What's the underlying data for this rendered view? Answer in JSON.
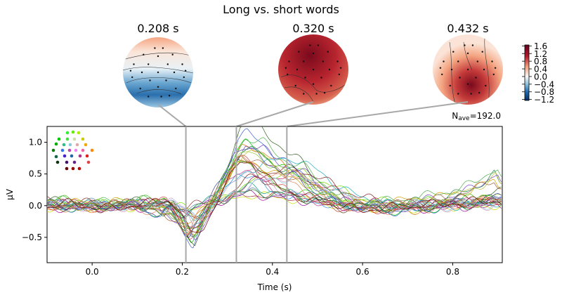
{
  "chart_data": {
    "type": "line",
    "title": "Long vs. short words",
    "xlabel": "Time (s)",
    "ylabel": "µV",
    "xlim": [
      -0.1,
      0.91
    ],
    "ylim": [
      -0.9,
      1.25
    ],
    "xticks": [
      0.0,
      0.2,
      0.4,
      0.6,
      0.8
    ],
    "xtick_labels": [
      "0.0",
      "0.2",
      "0.4",
      "0.6",
      "0.8"
    ],
    "yticks": [
      -0.5,
      0.0,
      0.5,
      1.0
    ],
    "ytick_labels": [
      "−0.5",
      "0.0",
      "0.5",
      "1.0"
    ],
    "nave_prefix": "N",
    "nave_sub": "ave",
    "nave_value": "=192.0",
    "topomap_times": [
      0.208,
      0.32,
      0.432
    ],
    "topomap_labels": [
      "0.208 s",
      "0.320 s",
      "0.432 s"
    ],
    "topomap_colors": [
      "#2166ac",
      "#b2182b",
      "#d6604d"
    ],
    "colorbar_ticks": [
      1.6,
      1.2,
      0.8,
      0.4,
      0.0,
      -0.4,
      -0.8,
      -1.2
    ],
    "colorbar_tick_labels": [
      "1.6",
      "1.2",
      "0.8",
      "0.4",
      "0.0",
      "−0.4",
      "−0.8",
      "−1.2"
    ],
    "colorbar_range": [
      -1.25,
      1.65
    ],
    "series_colors": [
      "#00c800",
      "#2fd000",
      "#7ae000",
      "#c8e000",
      "#d4a000",
      "#e07000",
      "#d04040",
      "#b02060",
      "#a000a0",
      "#7040c0",
      "#4060d0",
      "#3090e0",
      "#20b0c0",
      "#10a080",
      "#208040",
      "#306020",
      "#604020",
      "#802020",
      "#a03030",
      "#50b050",
      "#90d030",
      "#c0a0e0",
      "#e0a0c0",
      "#6080a0",
      "#a06040",
      "#4040a0",
      "#c04080",
      "#80c0e0",
      "#208020",
      "#c0c040",
      "#e08060",
      "#700000"
    ],
    "templates": [
      {
        "name": "gfp",
        "points": [
          [
            -0.1,
            0.03
          ],
          [
            -0.05,
            0.0
          ],
          [
            0.0,
            -0.02
          ],
          [
            0.05,
            0.03
          ],
          [
            0.1,
            0.02
          ],
          [
            0.13,
            -0.05
          ],
          [
            0.15,
            -0.15
          ],
          [
            0.17,
            0.0
          ],
          [
            0.2,
            -0.35
          ],
          [
            0.22,
            -0.5
          ],
          [
            0.24,
            -0.2
          ],
          [
            0.27,
            0.15
          ],
          [
            0.3,
            0.6
          ],
          [
            0.32,
            0.95
          ],
          [
            0.34,
            1.03
          ],
          [
            0.37,
            0.9
          ],
          [
            0.4,
            0.75
          ],
          [
            0.43,
            0.6
          ],
          [
            0.46,
            0.5
          ],
          [
            0.5,
            0.25
          ],
          [
            0.55,
            0.05
          ],
          [
            0.6,
            0.0
          ],
          [
            0.65,
            -0.05
          ],
          [
            0.7,
            -0.05
          ],
          [
            0.75,
            -0.02
          ],
          [
            0.8,
            0.05
          ],
          [
            0.85,
            0.1
          ],
          [
            0.91,
            0.15
          ]
        ]
      },
      {
        "name": "early-neg",
        "points": [
          [
            -0.1,
            0.0
          ],
          [
            -0.05,
            0.05
          ],
          [
            0.0,
            0.0
          ],
          [
            0.05,
            -0.03
          ],
          [
            0.1,
            0.03
          ],
          [
            0.14,
            0.06
          ],
          [
            0.17,
            0.1
          ],
          [
            0.2,
            -0.1
          ],
          [
            0.22,
            -0.45
          ],
          [
            0.25,
            -0.3
          ],
          [
            0.28,
            0.1
          ],
          [
            0.31,
            0.45
          ],
          [
            0.33,
            0.7
          ],
          [
            0.36,
            0.65
          ],
          [
            0.4,
            0.35
          ],
          [
            0.45,
            0.2
          ],
          [
            0.5,
            0.1
          ],
          [
            0.55,
            0.0
          ],
          [
            0.6,
            -0.05
          ],
          [
            0.7,
            0.0
          ],
          [
            0.8,
            0.05
          ],
          [
            0.91,
            0.1
          ]
        ]
      },
      {
        "name": "late-pos",
        "points": [
          [
            -0.1,
            0.05
          ],
          [
            -0.05,
            0.0
          ],
          [
            0.0,
            0.03
          ],
          [
            0.05,
            0.0
          ],
          [
            0.1,
            0.02
          ],
          [
            0.15,
            -0.02
          ],
          [
            0.2,
            -0.05
          ],
          [
            0.23,
            -0.2
          ],
          [
            0.27,
            0.0
          ],
          [
            0.31,
            0.25
          ],
          [
            0.35,
            0.45
          ],
          [
            0.4,
            0.55
          ],
          [
            0.45,
            0.6
          ],
          [
            0.5,
            0.45
          ],
          [
            0.55,
            0.25
          ],
          [
            0.6,
            0.1
          ],
          [
            0.7,
            0.0
          ],
          [
            0.8,
            0.0
          ],
          [
            0.91,
            0.05
          ]
        ]
      },
      {
        "name": "flat",
        "points": [
          [
            -0.1,
            0.0
          ],
          [
            0.0,
            0.02
          ],
          [
            0.1,
            0.0
          ],
          [
            0.15,
            0.05
          ],
          [
            0.2,
            -0.1
          ],
          [
            0.25,
            0.05
          ],
          [
            0.3,
            0.15
          ],
          [
            0.35,
            0.25
          ],
          [
            0.4,
            0.2
          ],
          [
            0.5,
            0.1
          ],
          [
            0.6,
            0.0
          ],
          [
            0.7,
            -0.02
          ],
          [
            0.8,
            0.02
          ],
          [
            0.91,
            0.05
          ]
        ]
      },
      {
        "name": "late-rise",
        "points": [
          [
            -0.1,
            0.05
          ],
          [
            0.0,
            0.0
          ],
          [
            0.1,
            0.05
          ],
          [
            0.15,
            0.0
          ],
          [
            0.2,
            -0.25
          ],
          [
            0.23,
            -0.4
          ],
          [
            0.27,
            0.0
          ],
          [
            0.31,
            0.5
          ],
          [
            0.34,
            0.8
          ],
          [
            0.38,
            0.75
          ],
          [
            0.42,
            0.55
          ],
          [
            0.47,
            0.45
          ],
          [
            0.5,
            0.3
          ],
          [
            0.55,
            0.1
          ],
          [
            0.6,
            0.0
          ],
          [
            0.7,
            0.05
          ],
          [
            0.8,
            0.15
          ],
          [
            0.85,
            0.25
          ],
          [
            0.9,
            0.45
          ],
          [
            0.91,
            0.3
          ]
        ]
      }
    ]
  }
}
